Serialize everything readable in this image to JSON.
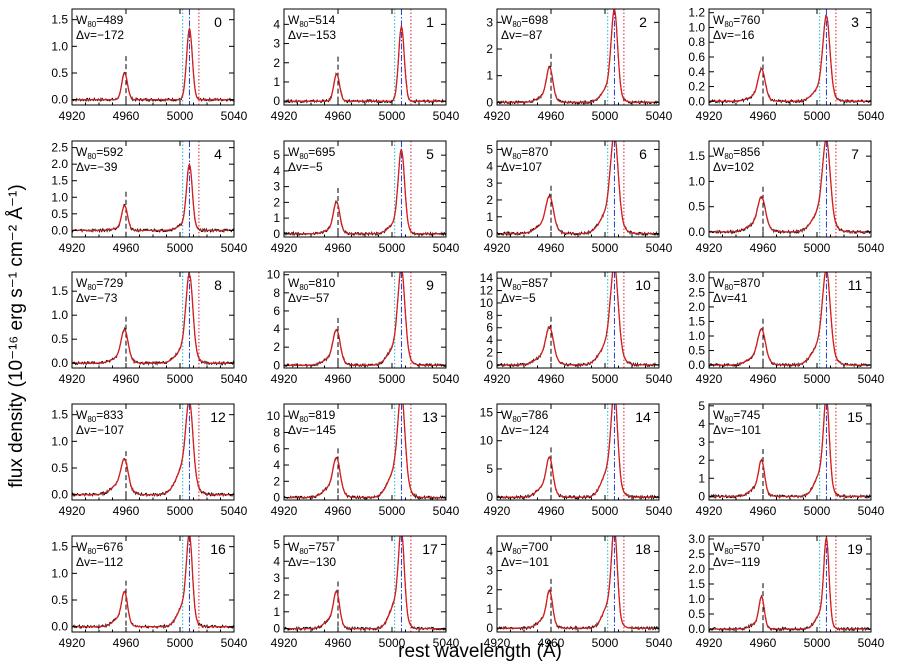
{
  "figure": {
    "xlabel": "rest wavelength (Å)",
    "ylabel": "flux density (10⁻¹⁶ erg s⁻¹ cm⁻² Å⁻¹)"
  },
  "chart_data": {
    "type": "line",
    "layout": "5 rows × 4 columns",
    "xlim": [
      4920,
      5040
    ],
    "xticks": [
      4920,
      4960,
      5000,
      5040
    ],
    "x_tick_labels": [
      "4920",
      "4960",
      "5000",
      "5040"
    ],
    "line_centers": {
      "OIII_4959": 4959,
      "OIII_5007": 5007
    },
    "reference_lines": {
      "black_dashed": 4960,
      "cyan_dotted": 5002,
      "blue_dashdot": 5007,
      "red_dotted": 5014
    },
    "series_styles": {
      "data": "#000000",
      "fit": "#d81e1e",
      "ref_black": "#000000",
      "ref_blue": "#1f3fd0",
      "ref_cyan": "#19b7c9",
      "ref_red": "#e0202a"
    },
    "panels": [
      {
        "label": "0",
        "w80_prefix": "W",
        "w80_sub": "80",
        "w80": "=489",
        "dv": "Δv=−172",
        "peak": 1.5,
        "ratio": 0.35,
        "width": 5,
        "asym": 0.0,
        "ylim": [
          -0.1,
          1.7
        ],
        "yticks": [
          0.0,
          0.5,
          1.0,
          1.5
        ],
        "ytick_labels": [
          "0.0",
          "0.5",
          "1.0",
          "1.5"
        ]
      },
      {
        "label": "1",
        "w80_prefix": "W",
        "w80_sub": "80",
        "w80": "=514",
        "dv": "Δv=−153",
        "peak": 4.4,
        "ratio": 0.34,
        "width": 5,
        "asym": 0.0,
        "ylim": [
          -0.2,
          4.8
        ],
        "yticks": [
          0,
          1,
          2,
          3,
          4
        ],
        "ytick_labels": [
          "0",
          "1",
          "2",
          "3",
          "4"
        ]
      },
      {
        "label": "2",
        "w80_prefix": "W",
        "w80_sub": "80",
        "w80": "=698",
        "dv": "Δv=−87",
        "peak": 3.4,
        "ratio": 0.35,
        "width": 5.5,
        "asym": 0.2,
        "ylim": [
          -0.1,
          3.5
        ],
        "yticks": [
          0,
          1,
          2,
          3
        ],
        "ytick_labels": [
          "0",
          "1",
          "2",
          "3"
        ]
      },
      {
        "label": "3",
        "w80_prefix": "W",
        "w80_sub": "80",
        "w80": "=760",
        "dv": "Δv=−16",
        "peak": 1.12,
        "ratio": 0.35,
        "width": 6,
        "asym": 0.2,
        "ylim": [
          -0.05,
          1.25
        ],
        "yticks": [
          0.0,
          0.2,
          0.4,
          0.6,
          0.8,
          1.0,
          1.2
        ],
        "ytick_labels": [
          "0.0",
          "0.2",
          "0.4",
          "0.6",
          "0.8",
          "1.0",
          "1.2"
        ]
      },
      {
        "label": "4",
        "w80_prefix": "W",
        "w80_sub": "80",
        "w80": "=592",
        "dv": "Δv=−39",
        "peak": 2.1,
        "ratio": 0.35,
        "width": 5,
        "asym": 0.1,
        "ylim": [
          -0.2,
          2.7
        ],
        "yticks": [
          0.0,
          0.5,
          1.0,
          1.5,
          2.0,
          2.5
        ],
        "ytick_labels": [
          "0.0",
          "0.5",
          "1.0",
          "1.5",
          "2.0",
          "2.5"
        ]
      },
      {
        "label": "5",
        "w80_prefix": "W",
        "w80_sub": "80",
        "w80": "=695",
        "dv": "Δv=−5",
        "peak": 5.4,
        "ratio": 0.35,
        "width": 5.5,
        "asym": 0.15,
        "ylim": [
          -0.2,
          5.9
        ],
        "yticks": [
          0,
          1,
          2,
          3,
          4,
          5
        ],
        "ytick_labels": [
          "0",
          "1",
          "2",
          "3",
          "4",
          "5"
        ]
      },
      {
        "label": "6",
        "w80_prefix": "W",
        "w80_sub": "80",
        "w80": "=870",
        "dv": "Δv=107",
        "peak": 5.3,
        "ratio": 0.35,
        "width": 6.5,
        "asym": 0.3,
        "ylim": [
          -0.2,
          5.5
        ],
        "yticks": [
          0,
          1,
          2,
          3,
          4,
          5
        ],
        "ytick_labels": [
          "0",
          "1",
          "2",
          "3",
          "4",
          "5"
        ]
      },
      {
        "label": "7",
        "w80_prefix": "W",
        "w80_sub": "80",
        "w80": "=856",
        "dv": "Δv=102",
        "peak": 1.65,
        "ratio": 0.35,
        "width": 6.5,
        "asym": 0.3,
        "ylim": [
          -0.1,
          1.8
        ],
        "yticks": [
          0.0,
          0.5,
          1.0,
          1.5
        ],
        "ytick_labels": [
          "0.0",
          "0.5",
          "1.0",
          "1.5"
        ]
      },
      {
        "label": "8",
        "w80_prefix": "W",
        "w80_sub": "80",
        "w80": "=729",
        "dv": "Δv=−73",
        "peak": 1.8,
        "ratio": 0.35,
        "width": 6,
        "asym": 0.2,
        "ylim": [
          -0.1,
          1.9
        ],
        "yticks": [
          0.0,
          0.5,
          1.0,
          1.5
        ],
        "ytick_labels": [
          "0.0",
          "0.5",
          "1.0",
          "1.5"
        ]
      },
      {
        "label": "9",
        "w80_prefix": "W",
        "w80_sub": "80",
        "w80": "=810",
        "dv": "Δv=−57",
        "peak": 10.0,
        "ratio": 0.34,
        "width": 6,
        "asym": 0.25,
        "ylim": [
          -0.3,
          10.3
        ],
        "yticks": [
          0,
          2,
          4,
          6,
          8,
          10
        ],
        "ytick_labels": [
          "0",
          "2",
          "4",
          "6",
          "8",
          "10"
        ]
      },
      {
        "label": "10",
        "w80_prefix": "W",
        "w80_sub": "80",
        "w80": "=857",
        "dv": "Δv=−5",
        "peak": 14.5,
        "ratio": 0.35,
        "width": 6.5,
        "asym": 0.3,
        "ylim": [
          -0.5,
          15.0
        ],
        "yticks": [
          0,
          2,
          4,
          6,
          8,
          10,
          12,
          14
        ],
        "ytick_labels": [
          "0",
          "2",
          "4",
          "6",
          "8",
          "10",
          "12",
          "14"
        ]
      },
      {
        "label": "11",
        "w80_prefix": "W",
        "w80_sub": "80",
        "w80": "=870",
        "dv": "Δv=41",
        "peak": 2.95,
        "ratio": 0.35,
        "width": 6.5,
        "asym": 0.3,
        "ylim": [
          -0.1,
          3.2
        ],
        "yticks": [
          0.0,
          0.5,
          1.0,
          1.5,
          2.0,
          2.5,
          3.0
        ],
        "ytick_labels": [
          "0.0",
          "0.5",
          "1.0",
          "1.5",
          "2.0",
          "2.5",
          "3.0"
        ]
      },
      {
        "label": "12",
        "w80_prefix": "W",
        "w80_sub": "80",
        "w80": "=833",
        "dv": "Δv=−107",
        "peak": 1.5,
        "ratio": 0.35,
        "width": 6,
        "asym": 0.4,
        "ylim": [
          -0.1,
          1.7
        ],
        "yticks": [
          0.0,
          0.5,
          1.0,
          1.5
        ],
        "ytick_labels": [
          "0.0",
          "0.5",
          "1.0",
          "1.5"
        ]
      },
      {
        "label": "13",
        "w80_prefix": "W",
        "w80_sub": "80",
        "w80": "=819",
        "dv": "Δv=−145",
        "peak": 11.3,
        "ratio": 0.35,
        "width": 6,
        "asym": 0.35,
        "ylim": [
          -0.3,
          11.5
        ],
        "yticks": [
          0,
          2,
          4,
          6,
          8,
          10
        ],
        "ytick_labels": [
          "0",
          "2",
          "4",
          "6",
          "8",
          "10"
        ]
      },
      {
        "label": "14",
        "w80_prefix": "W",
        "w80_sub": "80",
        "w80": "=786",
        "dv": "Δv=−124",
        "peak": 16.5,
        "ratio": 0.35,
        "width": 5.5,
        "asym": 0.35,
        "ylim": [
          -0.5,
          16.5
        ],
        "yticks": [
          0,
          5,
          10,
          15
        ],
        "ytick_labels": [
          "0",
          "5",
          "10",
          "15"
        ]
      },
      {
        "label": "15",
        "w80_prefix": "W",
        "w80_sub": "80",
        "w80": "=745",
        "dv": "Δv=−101",
        "peak": 5.0,
        "ratio": 0.34,
        "width": 5,
        "asym": 0.3,
        "ylim": [
          -0.2,
          5.1
        ],
        "yticks": [
          0,
          1,
          2,
          3,
          4,
          5
        ],
        "ytick_labels": [
          "0",
          "1",
          "2",
          "3",
          "4",
          "5"
        ]
      },
      {
        "label": "16",
        "w80_prefix": "W",
        "w80_sub": "80",
        "w80": "=676",
        "dv": "Δv=−112",
        "peak": 1.6,
        "ratio": 0.35,
        "width": 5,
        "asym": 0.3,
        "ylim": [
          -0.1,
          1.7
        ],
        "yticks": [
          0.0,
          0.5,
          1.0,
          1.5
        ],
        "ytick_labels": [
          "0.0",
          "0.5",
          "1.0",
          "1.5"
        ]
      },
      {
        "label": "17",
        "w80_prefix": "W",
        "w80_sub": "80",
        "w80": "=757",
        "dv": "Δv=−130",
        "peak": 5.2,
        "ratio": 0.35,
        "width": 5,
        "asym": 0.35,
        "ylim": [
          -0.2,
          5.5
        ],
        "yticks": [
          0,
          1,
          2,
          3,
          4,
          5
        ],
        "ytick_labels": [
          "0",
          "1",
          "2",
          "3",
          "4",
          "5"
        ]
      },
      {
        "label": "18",
        "w80_prefix": "W",
        "w80_sub": "80",
        "w80": "=700",
        "dv": "Δv=−101",
        "peak": 4.8,
        "ratio": 0.35,
        "width": 5,
        "asym": 0.3,
        "ylim": [
          -0.2,
          4.8
        ],
        "yticks": [
          0,
          1,
          2,
          3,
          4
        ],
        "ytick_labels": [
          "0",
          "1",
          "2",
          "3",
          "4"
        ]
      },
      {
        "label": "19",
        "w80_prefix": "W",
        "w80_sub": "80",
        "w80": "=570",
        "dv": "Δv=−119",
        "peak": 3.0,
        "ratio": 0.33,
        "width": 4.5,
        "asym": 0.2,
        "ylim": [
          -0.1,
          3.1
        ],
        "yticks": [
          0.0,
          0.5,
          1.0,
          1.5,
          2.0,
          2.5,
          3.0
        ],
        "ytick_labels": [
          "0.0",
          "0.5",
          "1.0",
          "1.5",
          "2.0",
          "2.5",
          "3.0"
        ]
      }
    ]
  }
}
